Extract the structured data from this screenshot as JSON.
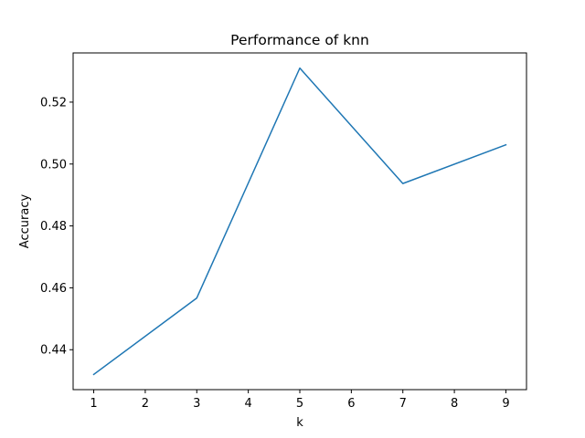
{
  "chart_data": {
    "type": "line",
    "title": "Performance of knn",
    "xlabel": "k",
    "ylabel": "Accuracy",
    "x": [
      1,
      3,
      5,
      7,
      9
    ],
    "series": [
      {
        "values": [
          0.432,
          0.4567,
          0.531,
          0.4937,
          0.5062
        ],
        "color": "#1f77b4"
      }
    ],
    "xlim": [
      0.6,
      9.4
    ],
    "ylim": [
      0.4271,
      0.5359
    ],
    "xticks": [
      1,
      2,
      3,
      4,
      5,
      6,
      7,
      8,
      9
    ],
    "xtick_labels": [
      "1",
      "2",
      "3",
      "4",
      "5",
      "6",
      "7",
      "8",
      "9"
    ],
    "yticks": [
      0.44,
      0.46,
      0.48,
      0.5,
      0.52
    ],
    "ytick_labels": [
      "0.44",
      "0.46",
      "0.48",
      "0.50",
      "0.52"
    ],
    "grid": false,
    "legend": "none"
  }
}
